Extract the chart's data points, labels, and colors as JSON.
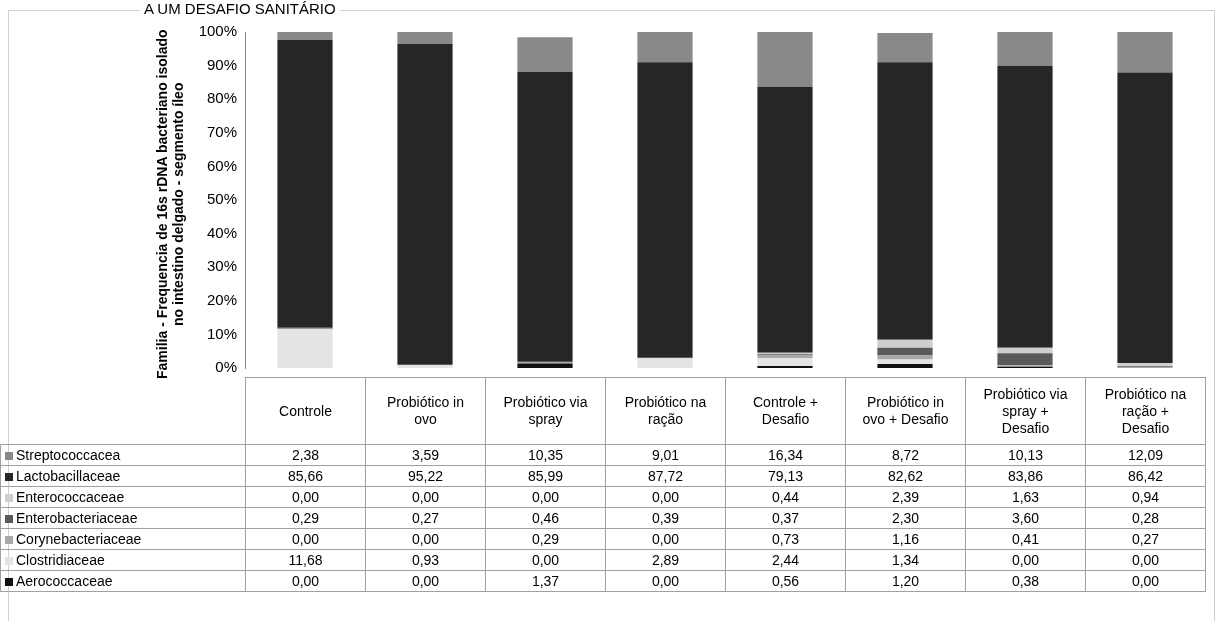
{
  "chart_data": {
    "type": "bar",
    "title": "A UM DESAFIO SANITÁRIO",
    "ylabel": "Familia - Frequencia de 16s rDNA bacteriano isolado no intestino delgado - segmento íleo",
    "categories": [
      "Controle",
      "Probiótico in ovo",
      "Probiótico via spray",
      "Probiótico na ração",
      "Controle + Desafio",
      "Probiótico in ovo + Desafio",
      "Probiótico via spray + Desafio",
      "Probiótico na ração + Desafio"
    ],
    "stacked": true,
    "ylim": [
      0,
      100
    ],
    "yticks": [
      {
        "value": 0,
        "label": "0%"
      },
      {
        "value": 10,
        "label": "10%"
      },
      {
        "value": 20,
        "label": "20%"
      },
      {
        "value": 30,
        "label": "30%"
      },
      {
        "value": 40,
        "label": "40%"
      },
      {
        "value": 50,
        "label": "50%"
      },
      {
        "value": 60,
        "label": "60%"
      },
      {
        "value": 70,
        "label": "70%"
      },
      {
        "value": 80,
        "label": "80%"
      },
      {
        "value": 90,
        "label": "90%"
      },
      {
        "value": 100,
        "label": "100%"
      }
    ],
    "grid": false,
    "legend": "bottom left",
    "series": [
      {
        "name": "Aerococcaceae",
        "color": "#111111",
        "values": [
          0,
          0,
          1.37,
          0,
          0.56,
          1.2,
          0.38,
          0
        ],
        "value_labels": [
          "0,00",
          "0,00",
          "1,37",
          "0,00",
          "0,56",
          "1,20",
          "0,38",
          "0,00"
        ]
      },
      {
        "name": "Clostridiaceae",
        "color": "#e4e4e4",
        "values": [
          11.68,
          0.93,
          0,
          2.89,
          2.44,
          1.34,
          0,
          0
        ],
        "value_labels": [
          "11,68",
          "0,93",
          "0,00",
          "2,89",
          "2,44",
          "1,34",
          "0,00",
          "0,00"
        ]
      },
      {
        "name": "Corynebacteriaceae",
        "color": "#a8a8a8",
        "values": [
          0,
          0,
          0.29,
          0,
          0.73,
          1.16,
          0.41,
          0.27
        ],
        "value_labels": [
          "0,00",
          "0,00",
          "0,29",
          "0,00",
          "0,73",
          "1,16",
          "0,41",
          "0,27"
        ]
      },
      {
        "name": "Enterobacteriaceae",
        "color": "#5a5a5a",
        "values": [
          0.29,
          0.27,
          0.46,
          0.39,
          0.37,
          2.3,
          3.6,
          0.28
        ],
        "value_labels": [
          "0,29",
          "0,27",
          "0,46",
          "0,39",
          "0,37",
          "2,30",
          "3,60",
          "0,28"
        ]
      },
      {
        "name": "Enterococcaceae",
        "color": "#cfcfcf",
        "values": [
          0,
          0,
          0,
          0,
          0.44,
          2.39,
          1.63,
          0.94
        ],
        "value_labels": [
          "0,00",
          "0,00",
          "0,00",
          "0,00",
          "0,44",
          "2,39",
          "1,63",
          "0,94"
        ]
      },
      {
        "name": "Lactobacillaceae",
        "color": "#262626",
        "values": [
          85.66,
          95.22,
          85.99,
          87.72,
          79.13,
          82.62,
          83.86,
          86.42
        ],
        "value_labels": [
          "85,66",
          "95,22",
          "85,99",
          "87,72",
          "79,13",
          "82,62",
          "83,86",
          "86,42"
        ]
      },
      {
        "name": "Streptococcacea",
        "color": "#888888",
        "values": [
          2.38,
          3.59,
          10.35,
          9.01,
          16.34,
          8.72,
          10.13,
          12.09
        ],
        "value_labels": [
          "2,38",
          "3,59",
          "10,35",
          "9,01",
          "16,34",
          "8,72",
          "10,13",
          "12,09"
        ]
      }
    ]
  }
}
